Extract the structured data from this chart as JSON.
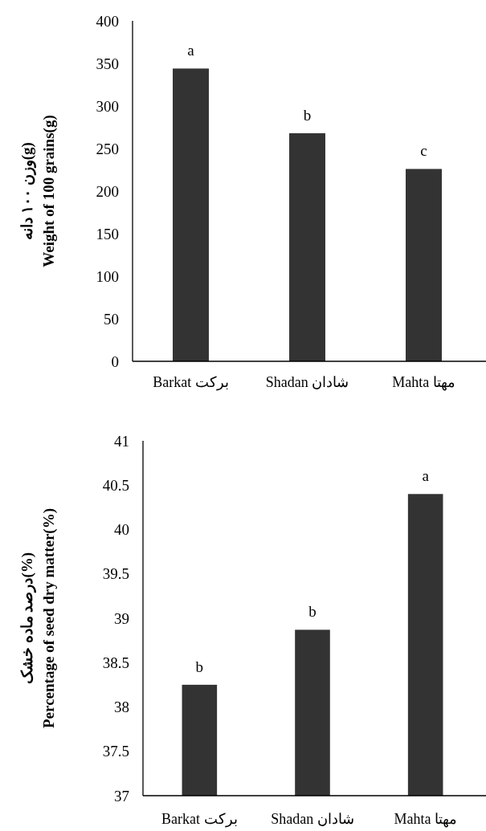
{
  "chart_data": [
    {
      "type": "bar",
      "ylabel": "وزن ۱۰۰ دانه(g)\nWeight of 100 grains(g)",
      "categories": [
        "Barkat برکت",
        "Shadan شادان",
        "Mahta مهتا"
      ],
      "values": [
        344,
        268,
        226
      ],
      "color": "#333333",
      "ylim": [
        0,
        400
      ],
      "yticks": [
        0,
        50,
        100,
        150,
        200,
        250,
        300,
        350,
        400
      ],
      "annotations": [
        {
          "text": "a",
          "x": "Barkat برکت",
          "y": 344
        },
        {
          "text": "b",
          "x": "Shadan شادان",
          "y": 268
        },
        {
          "text": "c",
          "x": "Mahta مهتا",
          "y": 226
        }
      ]
    },
    {
      "type": "bar",
      "ylabel": "درصد ماده خشک(%)\nPercentage of seed dry matter(%)",
      "categories": [
        "Barkat برکت",
        "Shadan شادان",
        "Mahta مهتا"
      ],
      "values": [
        38.25,
        38.87,
        40.4
      ],
      "color": "#333333",
      "ylim": [
        37,
        41
      ],
      "yticks": [
        37,
        37.5,
        38,
        38.5,
        39,
        39.5,
        40,
        40.5,
        41
      ],
      "annotations": [
        {
          "text": "b",
          "x": "Barkat برکت",
          "y": 38.25
        },
        {
          "text": "b",
          "x": "Shadan شادان",
          "y": 38.87
        },
        {
          "text": "a",
          "x": "Mahta مهتا",
          "y": 40.4
        }
      ]
    }
  ]
}
